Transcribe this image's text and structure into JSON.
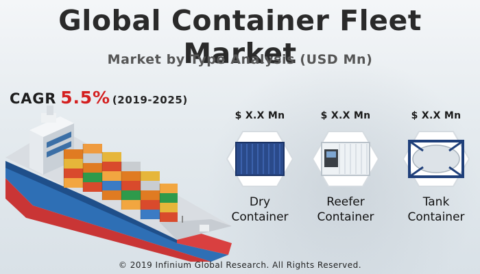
{
  "title": "Global Container Fleet Market",
  "subtitle": "Market by Type Analysis (USD Mn)",
  "cagr": {
    "label": "CAGR",
    "value": "5.5%",
    "period": "(2019-2025)"
  },
  "segments": [
    {
      "price": "$ X.X Mn",
      "line1": "Dry",
      "line2": "Container",
      "icon": "dry-container-icon"
    },
    {
      "price": "$ X.X Mn",
      "line1": "Reefer",
      "line2": "Container",
      "icon": "reefer-container-icon"
    },
    {
      "price": "$ X.X Mn",
      "line1": "Tank",
      "line2": "Container",
      "icon": "tank-container-icon"
    }
  ],
  "footer": "© 2019 Infinium Global Research. All Rights Reserved.",
  "colors": {
    "accent": "#d41f1f",
    "title": "#2a2a2a",
    "hull": "#c93535",
    "deck": "#2e6fb5"
  }
}
